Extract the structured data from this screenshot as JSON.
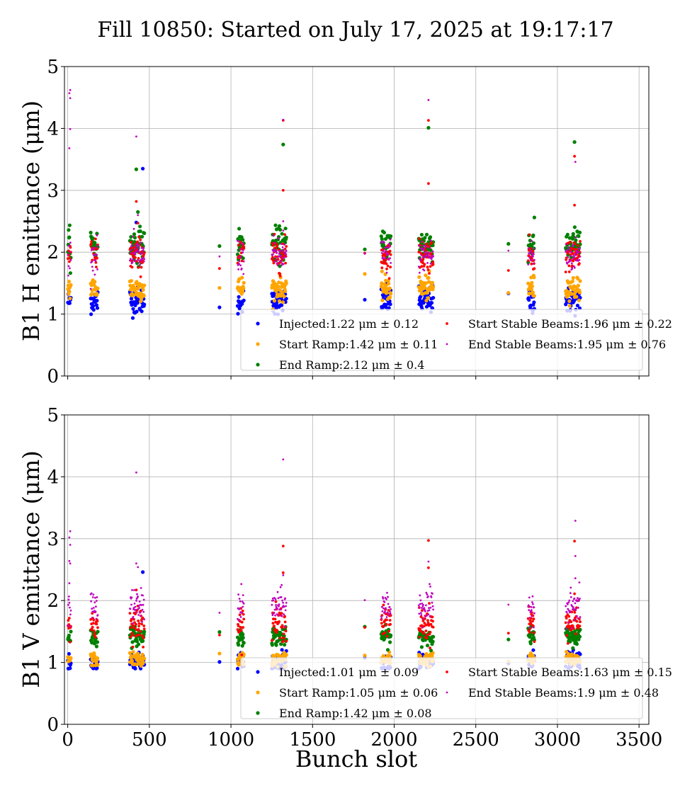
{
  "figure": {
    "title": "Fill 10850: Started on July 17, 2025 at 19:17:17",
    "xlabel": "Bunch slot"
  },
  "chart_data": [
    {
      "type": "scatter",
      "ylabel": "B1 H emittance (μm)",
      "xlim": [
        -20,
        3560
      ],
      "ylim": [
        0,
        5
      ],
      "xticks": [
        0,
        500,
        1000,
        1500,
        2000,
        2500,
        3000,
        3500
      ],
      "yticks": [
        0,
        1,
        2,
        3,
        4,
        5
      ],
      "show_xticklabels": false,
      "grid": true,
      "legend_position": "lower-right",
      "stages": [
        {
          "name": "Injected",
          "mean": 1.22,
          "std": 0.12
        },
        {
          "name": "Start Ramp",
          "mean": 1.42,
          "std": 0.11
        },
        {
          "name": "End Ramp",
          "mean": 2.12,
          "std": 0.4
        },
        {
          "name": "Start Stable Beams",
          "mean": 1.96,
          "std": 0.22
        },
        {
          "name": "End Stable Beams",
          "mean": 1.95,
          "std": 0.76
        }
      ],
      "legend": [
        "Injected:1.22 μm ± 0.12",
        "Start Ramp:1.42 μm ± 0.11",
        "End Ramp:2.12 μm ± 0.4",
        "Start Stable Beams:1.96 μm ± 0.22",
        "End Stable Beams:1.95 μm ± 0.76"
      ],
      "outliers": {
        "Injected": [
          [
            460,
            3.35
          ],
          [
            420,
            2.48
          ]
        ],
        "End Ramp": [
          [
            1320,
            3.74
          ],
          [
            2210,
            4.01
          ],
          [
            3105,
            3.78
          ],
          [
            420,
            3.34
          ],
          [
            430,
            2.65
          ]
        ],
        "Start Stable Beams": [
          [
            1320,
            4.13
          ],
          [
            2210,
            4.13
          ],
          [
            1320,
            3.0
          ],
          [
            2210,
            3.11
          ],
          [
            3105,
            3.55
          ],
          [
            3105,
            2.76
          ],
          [
            420,
            2.82
          ],
          [
            430,
            2.47
          ]
        ],
        "End Stable Beams": [
          [
            15,
            4.62
          ],
          [
            10,
            4.57
          ],
          [
            15,
            4.49
          ],
          [
            15,
            3.99
          ],
          [
            10,
            3.68
          ],
          [
            420,
            3.87
          ],
          [
            1320,
            4.14
          ],
          [
            2210,
            4.46
          ],
          [
            3110,
            3.46
          ],
          [
            430,
            2.6
          ],
          [
            1320,
            2.5
          ],
          [
            1320,
            2.35
          ]
        ]
      }
    },
    {
      "type": "scatter",
      "ylabel": "B1 V emittance (μm)",
      "xlim": [
        -20,
        3560
      ],
      "ylim": [
        0,
        5
      ],
      "xticks": [
        0,
        500,
        1000,
        1500,
        2000,
        2500,
        3000,
        3500
      ],
      "yticks": [
        0,
        1,
        2,
        3,
        4,
        5
      ],
      "show_xticklabels": true,
      "grid": true,
      "legend_position": "lower-right",
      "stages": [
        {
          "name": "Injected",
          "mean": 1.01,
          "std": 0.09
        },
        {
          "name": "Start Ramp",
          "mean": 1.05,
          "std": 0.06
        },
        {
          "name": "End Ramp",
          "mean": 1.42,
          "std": 0.08
        },
        {
          "name": "Start Stable Beams",
          "mean": 1.63,
          "std": 0.15
        },
        {
          "name": "End Stable Beams",
          "mean": 1.9,
          "std": 0.48
        }
      ],
      "legend": [
        "Injected:1.01 μm ± 0.09",
        "Start Ramp:1.05 μm ± 0.06",
        "End Ramp:1.42 μm ± 0.08",
        "Start Stable Beams:1.63 μm ± 0.15",
        "End Stable Beams:1.9 μm ± 0.48"
      ],
      "outliers": {
        "Injected": [
          [
            460,
            2.46
          ]
        ],
        "Start Stable Beams": [
          [
            1320,
            2.88
          ],
          [
            2210,
            2.97
          ],
          [
            2210,
            2.53
          ],
          [
            1320,
            2.45
          ],
          [
            3105,
            2.96
          ],
          [
            3105,
            2.11
          ],
          [
            420,
            2.17
          ]
        ],
        "End Stable Beams": [
          [
            15,
            3.12
          ],
          [
            10,
            3.02
          ],
          [
            15,
            2.9
          ],
          [
            10,
            2.64
          ],
          [
            15,
            2.6
          ],
          [
            420,
            4.07
          ],
          [
            420,
            2.6
          ],
          [
            430,
            2.54
          ],
          [
            1320,
            4.28
          ],
          [
            1320,
            2.41
          ],
          [
            2210,
            2.63
          ],
          [
            3110,
            3.29
          ],
          [
            3110,
            2.72
          ],
          [
            3110,
            2.36
          ],
          [
            10,
            2.28
          ]
        ]
      }
    }
  ],
  "bunch_groups": [
    [
      0,
      20
    ],
    [
      140,
      185
    ],
    [
      380,
      470
    ],
    [
      930,
      930
    ],
    [
      1040,
      1080
    ],
    [
      1250,
      1340
    ],
    [
      1820,
      1820
    ],
    [
      1920,
      1980
    ],
    [
      2150,
      2240
    ],
    [
      2700,
      2700
    ],
    [
      2820,
      2860
    ],
    [
      3050,
      3140
    ]
  ],
  "colors": {
    "Injected": "#0000ff",
    "Start Ramp": "#ffa500",
    "End Ramp": "#008000",
    "Start Stable Beams": "#ff0000",
    "End Stable Beams": "#bf00bf",
    "grid": "#b0b0b0"
  }
}
